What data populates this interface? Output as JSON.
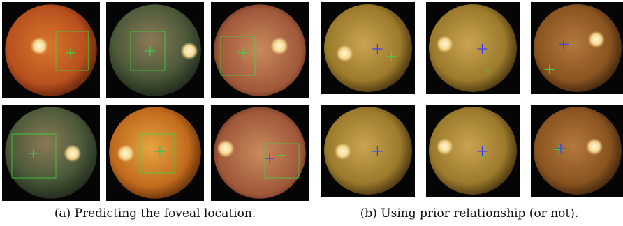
{
  "subfigures": [
    {
      "caption": "(a) Predicting the foveal location."
    },
    {
      "caption": "(b) Using prior relationship (or not)."
    }
  ]
}
